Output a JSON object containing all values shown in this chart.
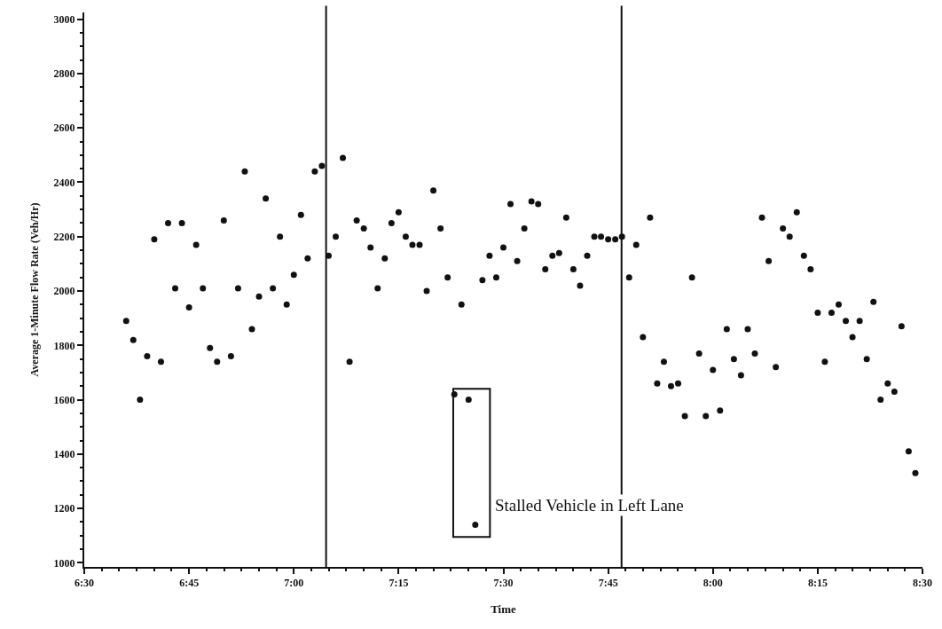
{
  "chart_data": {
    "type": "scatter",
    "xlabel": "Time",
    "ylabel": "Average 1-Minute Flow Rate (Veh/Hr)",
    "x": [
      6.6,
      6.617,
      6.633,
      6.65,
      6.667,
      6.683,
      6.7,
      6.717,
      6.733,
      6.75,
      6.767,
      6.783,
      6.8,
      6.817,
      6.833,
      6.85,
      6.867,
      6.883,
      6.9,
      6.917,
      6.933,
      6.95,
      6.967,
      6.983,
      7.0,
      7.017,
      7.033,
      7.05,
      7.067,
      7.083,
      7.1,
      7.117,
      7.133,
      7.15,
      7.167,
      7.183,
      7.2,
      7.217,
      7.233,
      7.25,
      7.267,
      7.283,
      7.3,
      7.317,
      7.333,
      7.35,
      7.367,
      7.383,
      7.4,
      7.417,
      7.433,
      7.45,
      7.467,
      7.483,
      7.5,
      7.517,
      7.533,
      7.55,
      7.567,
      7.583,
      7.6,
      7.617,
      7.633,
      7.65,
      7.667,
      7.683,
      7.7,
      7.717,
      7.733,
      7.75,
      7.767,
      7.783,
      7.8,
      7.817,
      7.833,
      7.85,
      7.867,
      7.883,
      7.9,
      7.917,
      7.933,
      7.95,
      7.967,
      7.983,
      8.0,
      8.017,
      8.033,
      8.05,
      8.067,
      8.083,
      8.1,
      8.117,
      8.133,
      8.15,
      8.167,
      8.183,
      8.2,
      8.217,
      8.233,
      8.25,
      8.267,
      8.283,
      8.3,
      8.317,
      8.333,
      8.35,
      8.367,
      8.383,
      8.4,
      8.417,
      8.433,
      8.45,
      8.467,
      8.483
    ],
    "values": [
      1890,
      1820,
      1600,
      1760,
      2190,
      1740,
      2250,
      2010,
      2250,
      1940,
      2170,
      2010,
      1790,
      1740,
      2260,
      1760,
      2010,
      2440,
      1860,
      1980,
      2340,
      2010,
      2200,
      1950,
      2060,
      2280,
      2120,
      2440,
      2460,
      2130,
      2200,
      2490,
      1740,
      2260,
      2230,
      2160,
      2010,
      2120,
      2250,
      2290,
      2200,
      2170,
      2170,
      2000,
      2370,
      2230,
      2050,
      1620,
      1950,
      1600,
      1140,
      2040,
      2130,
      2050,
      2160,
      2320,
      2110,
      2230,
      2330,
      2320,
      2080,
      2130,
      2140,
      2270,
      2080,
      2020,
      2130,
      2200,
      2200,
      2190,
      2190,
      2200,
      2050,
      2170,
      1830,
      2270,
      1660,
      1740,
      1650,
      1660,
      1540,
      2050,
      1770,
      1540,
      1710,
      1560,
      1860,
      1750,
      1690,
      1860,
      1770,
      2270,
      2110,
      1720,
      2230,
      2200,
      2290,
      2130,
      2080,
      1920,
      1740,
      1920,
      1950,
      1890,
      1830,
      1890,
      1750,
      1960,
      1600,
      1660,
      1630,
      1870,
      1410,
      1330
    ],
    "color": "#111111",
    "marker": "circle",
    "xlim": [
      6.5,
      8.5
    ],
    "xticks": [
      {
        "value": 6.5,
        "label": "6:30"
      },
      {
        "value": 6.75,
        "label": "6:45"
      },
      {
        "value": 7.0,
        "label": "7:00"
      },
      {
        "value": 7.25,
        "label": "7:15"
      },
      {
        "value": 7.5,
        "label": "7:30"
      },
      {
        "value": 7.75,
        "label": "7:45"
      },
      {
        "value": 8.0,
        "label": "8:00"
      },
      {
        "value": 8.25,
        "label": "8:15"
      },
      {
        "value": 8.5,
        "label": "8:30"
      }
    ],
    "ylim": [
      985,
      3025
    ],
    "yticks": [
      1000,
      1200,
      1400,
      1600,
      1800,
      2000,
      2200,
      2400,
      2600,
      2800,
      3000
    ],
    "ref_lines": [
      {
        "axis": "x",
        "value": 7.077,
        "color": "#111111"
      },
      {
        "axis": "x",
        "value": 7.782,
        "color": "#111111"
      }
    ],
    "annotations": [
      {
        "text": "Stalled Vehicle in Left Lane",
        "x": 7.433,
        "y": 1140
      }
    ],
    "legend": false
  }
}
